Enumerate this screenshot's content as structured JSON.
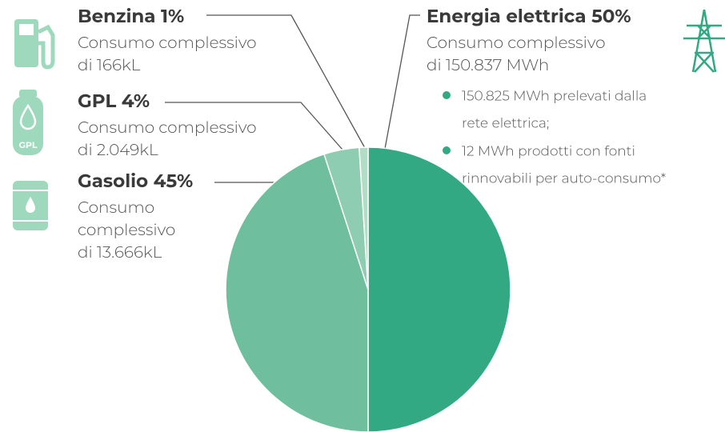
{
  "chart_data": {
    "type": "pie",
    "categories": [
      "Energia elettrica",
      "Gasolio",
      "GPL",
      "Benzina"
    ],
    "values": [
      50,
      45,
      4,
      1
    ],
    "value_labels": [
      "50%",
      "45%",
      "4%",
      "1%"
    ],
    "colors": [
      "#32a983",
      "#6fbf9f",
      "#8ecdb1",
      "#b3dcc7"
    ],
    "descriptions": [
      [
        "Consumo complessivo",
        "di 150.837 MWh"
      ],
      [
        "Consumo",
        "complessivo",
        "di 13.666kL"
      ],
      [
        "Consumo complessivo",
        "di 2.049kL"
      ],
      [
        "Consumo complessivo",
        "di 166kL"
      ]
    ],
    "bullets": [
      [
        "150.825 MWh prelevati dalla",
        "rete elettrica;"
      ],
      [
        "12 MWh prodotti con fonti",
        "rinnovabili per auto-consumo*"
      ]
    ]
  }
}
